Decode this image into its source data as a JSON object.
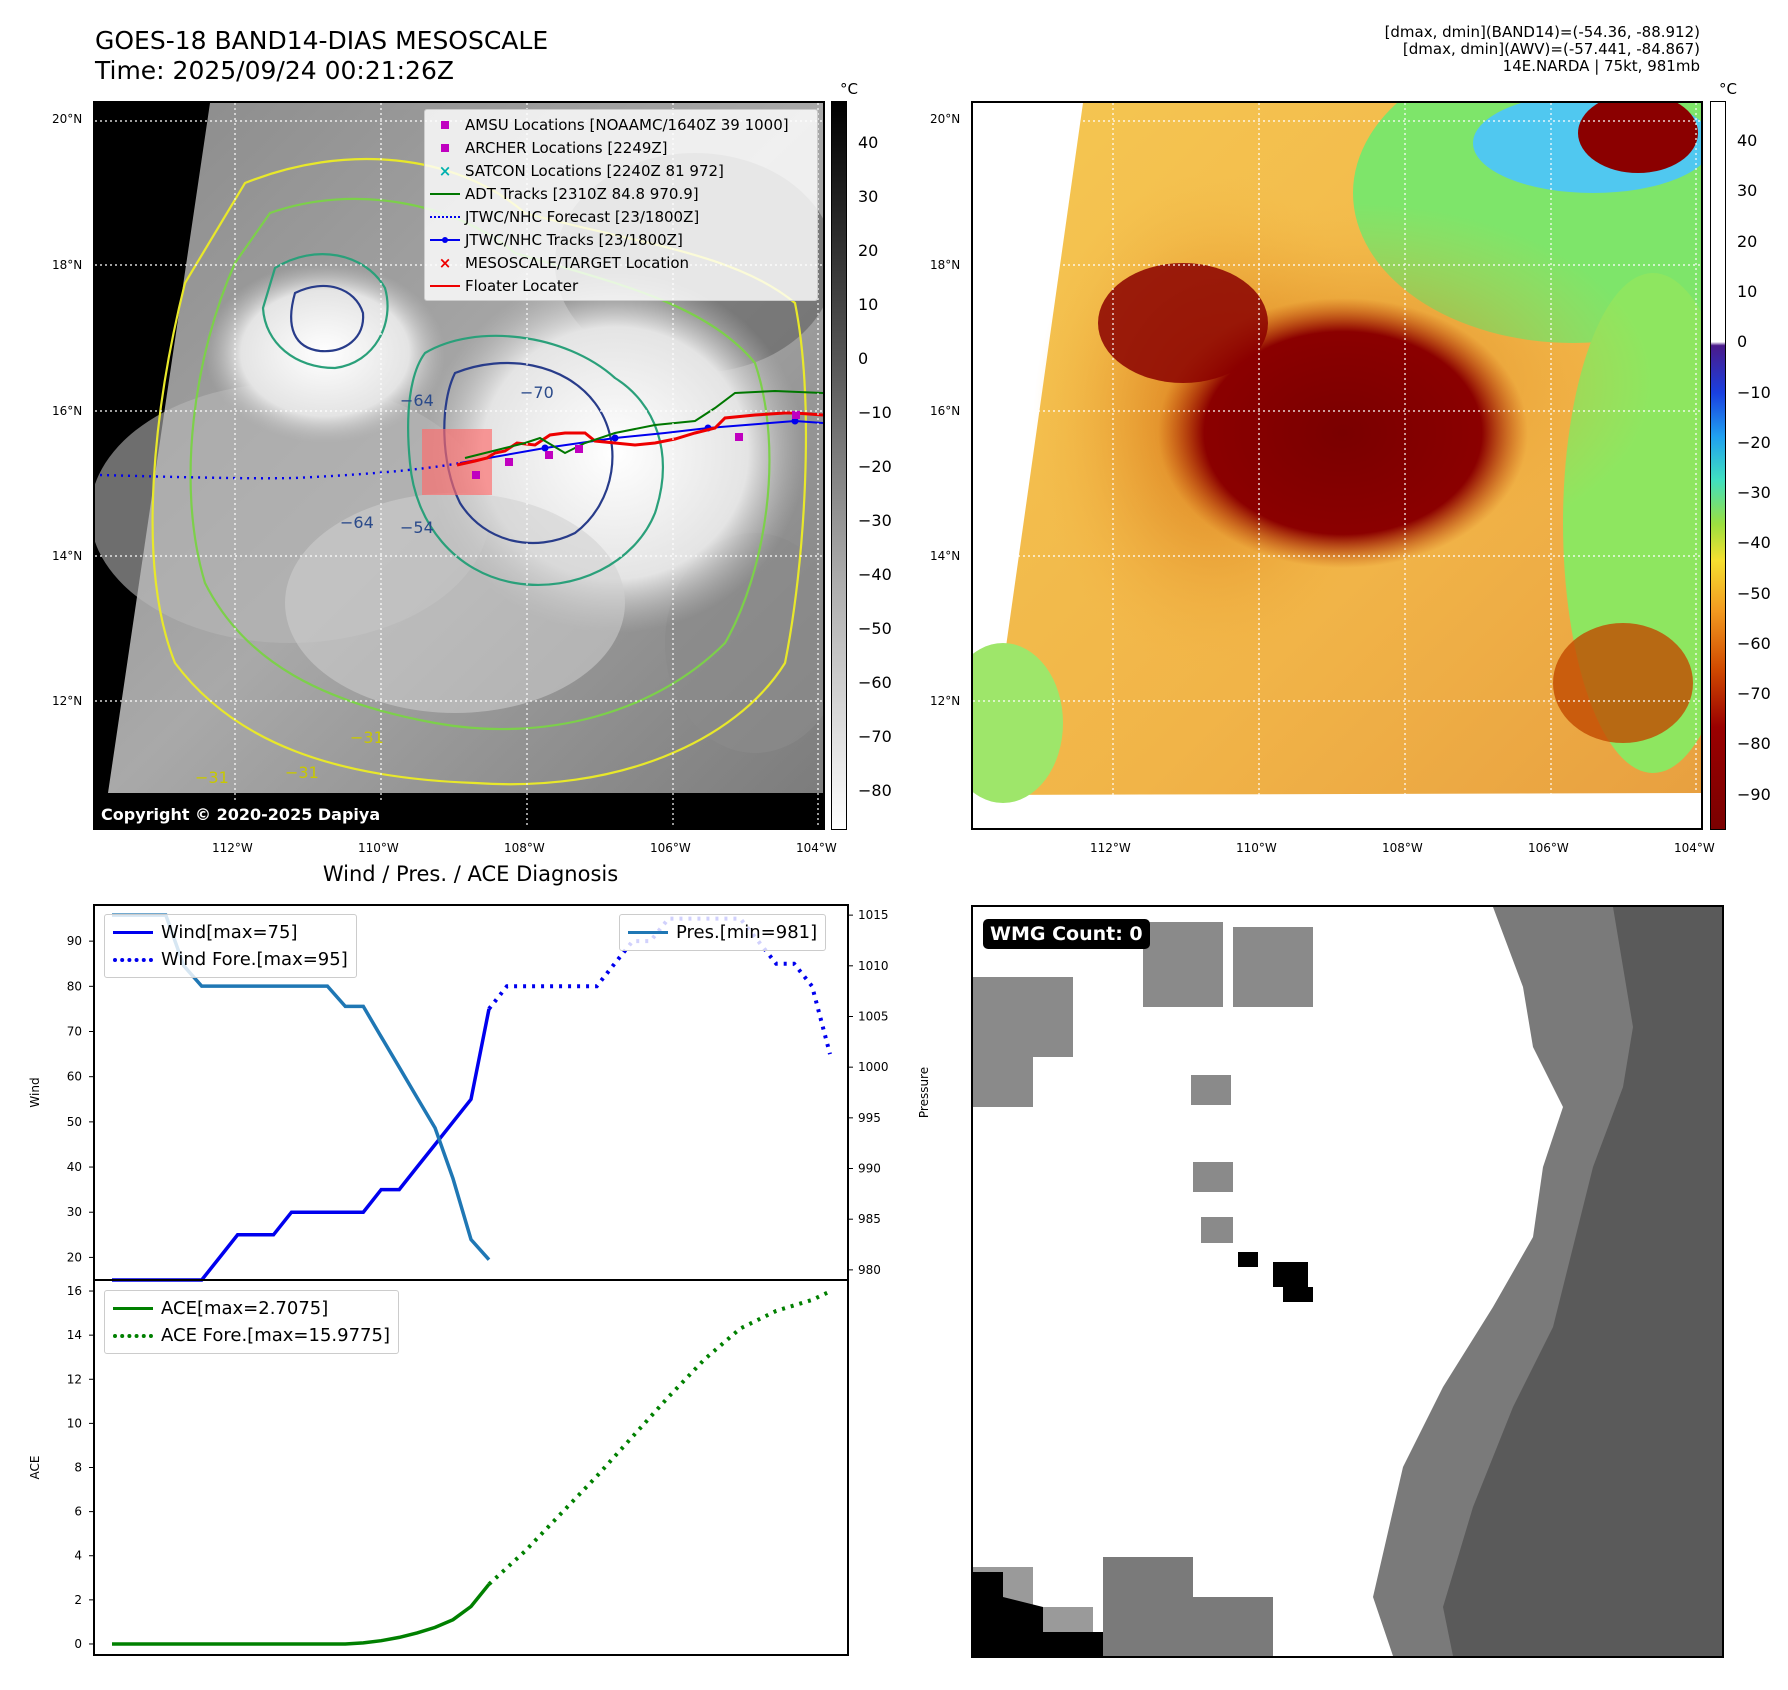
{
  "header": {
    "title_line1": "GOES-18 BAND14-DIAS MESOSCALE",
    "title_line2": "Time: 2025/09/24 00:21:26Z",
    "info_line1": "[dmax, dmin](BAND14)=(-54.36, -88.912)",
    "info_line2": "[dmax, dmin](AWV)=(-57.441, -84.867)",
    "info_line3": "14E.NARDA | 75kt, 981mb"
  },
  "map_axes": {
    "lat_labels": [
      "20°N",
      "18°N",
      "16°N",
      "14°N",
      "12°N"
    ],
    "lon_labels": [
      "112°W",
      "110°W",
      "108°W",
      "106°W",
      "104°W"
    ]
  },
  "left_map": {
    "colorbar_unit": "°C",
    "colorbar_ticks": [
      "40",
      "30",
      "20",
      "10",
      "0",
      "−10",
      "−20",
      "−30",
      "−40",
      "−50",
      "−60",
      "−70",
      "−80"
    ],
    "contour_labels": [
      "−64",
      "−70",
      "−64",
      "−54",
      "−31",
      "−31",
      "−31"
    ],
    "copyright": "Copyright © 2020-2025 Dapiya",
    "legend": [
      {
        "label": "AMSU Locations [NOAAMC/1640Z 39 1000]",
        "color": "#c000c0",
        "marker": "square"
      },
      {
        "label": "ARCHER Locations [2249Z]",
        "color": "#c000c0",
        "marker": "square"
      },
      {
        "label": "SATCON Locations [2240Z 81 972]",
        "color": "#00b0b0",
        "marker": "x"
      },
      {
        "label": "ADT Tracks [2310Z 84.8 970.9]",
        "color": "#007700",
        "marker": "line"
      },
      {
        "label": "JTWC/NHC Forecast [23/1800Z]",
        "color": "#0000ee",
        "marker": "dotted"
      },
      {
        "label": "JTWC/NHC Tracks [23/1800Z]",
        "color": "#0000ee",
        "marker": "line-dot"
      },
      {
        "label": "MESOSCALE/TARGET Location",
        "color": "#ee0000",
        "marker": "x"
      },
      {
        "label": "Floater Locater",
        "color": "#ee0000",
        "marker": "line"
      }
    ]
  },
  "right_map": {
    "colorbar_unit": "°C",
    "colorbar_ticks": [
      "40",
      "30",
      "20",
      "10",
      "0",
      "−10",
      "−20",
      "−30",
      "−40",
      "−50",
      "−60",
      "−70",
      "−80",
      "−90"
    ]
  },
  "diagnosis": {
    "title": "Wind / Pres. / ACE Diagnosis",
    "wind_ylabel": "Wind",
    "pres_ylabel": "Pressure",
    "ace_ylabel": "ACE",
    "legend_wind": "Wind[max=75]",
    "legend_wind_fore": "Wind Fore.[max=95]",
    "legend_pres": "Pres.[min=981]",
    "legend_ace": "ACE[max=2.7075]",
    "legend_ace_fore": "ACE Fore.[max=15.9775]"
  },
  "wmg": {
    "label": "WMG Count: 0"
  },
  "colors": {
    "wind": "#0000ee",
    "pressure": "#1f77b4",
    "ace": "#008000",
    "floater": "#ee0000"
  },
  "chart_data": [
    {
      "type": "line",
      "title": "",
      "xlabel": "",
      "ylabel": "Wind",
      "ylim": [
        15,
        98
      ],
      "yticks": [
        20,
        30,
        40,
        50,
        60,
        70,
        80,
        90
      ],
      "series": [
        {
          "name": "Wind[max=75]",
          "style": "solid",
          "x": [
            0,
            1,
            2,
            3,
            4,
            5,
            6,
            7,
            8,
            9,
            10,
            11,
            12,
            13,
            14,
            15,
            16,
            17,
            18,
            19,
            20,
            21
          ],
          "values": [
            15,
            15,
            15,
            15,
            15,
            15,
            20,
            25,
            25,
            25,
            30,
            30,
            30,
            30,
            30,
            35,
            35,
            40,
            45,
            50,
            55,
            75
          ]
        },
        {
          "name": "Wind Fore.[max=95]",
          "style": "dotted",
          "x": [
            21,
            22,
            23,
            24,
            25,
            26,
            27,
            28,
            29,
            30,
            31,
            32,
            33,
            34,
            35,
            36,
            37,
            38,
            39,
            40
          ],
          "values": [
            75,
            80,
            80,
            80,
            80,
            80,
            80,
            85,
            90,
            90,
            95,
            95,
            95,
            95,
            95,
            90,
            85,
            85,
            80,
            65
          ]
        }
      ]
    },
    {
      "type": "line",
      "ylabel": "Pressure",
      "ylim": [
        979,
        1016
      ],
      "yticks": [
        980,
        985,
        990,
        995,
        1000,
        1005,
        1010,
        1015
      ],
      "series": [
        {
          "name": "Pres.[min=981]",
          "style": "solid",
          "x": [
            0,
            1,
            2,
            3,
            4,
            5,
            6,
            7,
            8,
            9,
            10,
            11,
            12,
            13,
            14,
            15,
            16,
            17,
            18,
            19,
            20,
            21
          ],
          "values": [
            1015,
            1015,
            1015,
            1015,
            1010,
            1008,
            1008,
            1008,
            1008,
            1008,
            1008,
            1008,
            1008,
            1006,
            1006,
            1003,
            1000,
            997,
            994,
            989,
            983,
            981
          ]
        }
      ]
    },
    {
      "type": "line",
      "ylabel": "ACE",
      "ylim": [
        -0.5,
        16.5
      ],
      "yticks": [
        0,
        2,
        4,
        6,
        8,
        10,
        12,
        14,
        16
      ],
      "series": [
        {
          "name": "ACE[max=2.7075]",
          "style": "solid",
          "x": [
            0,
            2,
            4,
            6,
            8,
            10,
            12,
            13,
            14,
            15,
            16,
            17,
            18,
            19,
            20,
            21
          ],
          "values": [
            0,
            0,
            0,
            0,
            0,
            0,
            0,
            0,
            0.05,
            0.15,
            0.3,
            0.5,
            0.75,
            1.1,
            1.7,
            2.7075
          ]
        },
        {
          "name": "ACE Fore.[max=15.9775]",
          "style": "dotted",
          "x": [
            21,
            23,
            25,
            27,
            29,
            31,
            33,
            35,
            37,
            39,
            40
          ],
          "values": [
            2.7075,
            4.2,
            5.9,
            7.6,
            9.4,
            11.2,
            12.9,
            14.3,
            15.1,
            15.6,
            15.9775
          ]
        }
      ]
    }
  ]
}
